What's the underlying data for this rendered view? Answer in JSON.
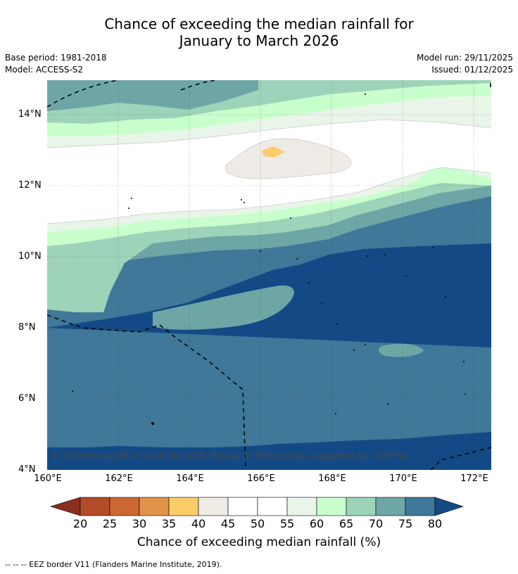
{
  "header": {
    "title_line1": "Chance of exceeding the median rainfall for",
    "title_line2": "January to March 2026",
    "base_period": "Base period: 1981-2018",
    "model": "Model: ACCESS-S2",
    "model_run": "Model run: 29/11/2025",
    "issued": "Issued: 01/12/2025"
  },
  "map": {
    "lat_labels": [
      "14°N",
      "12°N",
      "10°N",
      "8°N",
      "6°N",
      "4°N"
    ],
    "lon_labels": [
      "160°E",
      "162°E",
      "164°E",
      "166°E",
      "168°E",
      "170°E",
      "172°E"
    ],
    "copyright": "© Commonwealth of Australia 2025, Bureau of Meteorology, supported by COSPPac"
  },
  "colorbar": {
    "ticks": [
      "20",
      "25",
      "30",
      "35",
      "40",
      "45",
      "50",
      "55",
      "60",
      "65",
      "70",
      "75",
      "80"
    ],
    "colors": [
      "#8b2e1e",
      "#b24b27",
      "#cc6633",
      "#e0954a",
      "#fdcc6a",
      "#efebe6",
      "#ffffff",
      "#ffffff",
      "#e9f5e9",
      "#c8ffcc",
      "#9dd3b9",
      "#6ea6a6",
      "#3f7898",
      "#134a86"
    ],
    "label": "Chance of exceeding median rainfall (%)"
  },
  "legend": {
    "eez_text": "--  --  -- EEZ border V11 (Flanders Marine Institute, 2019)."
  }
}
